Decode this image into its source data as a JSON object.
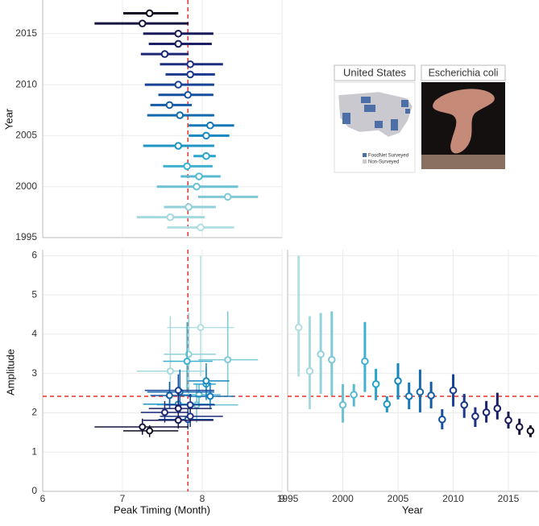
{
  "chart_data": [
    {
      "type": "forest",
      "ylabel": "Year",
      "y": [
        1996,
        1997,
        1998,
        1999,
        2000,
        2001,
        2002,
        2003,
        2004,
        2005,
        2006,
        2007,
        2008,
        2009,
        2010,
        2011,
        2012,
        2013,
        2014,
        2015,
        2016,
        2017
      ],
      "values": [
        7.98,
        7.6,
        7.83,
        8.32,
        7.93,
        7.96,
        7.81,
        8.05,
        7.7,
        8.05,
        8.1,
        7.72,
        7.59,
        7.82,
        7.7,
        7.85,
        7.85,
        7.53,
        7.7,
        7.7,
        7.25,
        7.34
      ],
      "low": [
        7.56,
        7.18,
        7.52,
        7.95,
        7.43,
        7.73,
        7.51,
        7.89,
        7.26,
        7.83,
        7.83,
        7.31,
        7.35,
        7.45,
        7.28,
        7.54,
        7.47,
        7.23,
        7.33,
        7.26,
        6.65,
        7.01
      ],
      "high": [
        8.4,
        8.03,
        8.17,
        8.7,
        8.45,
        8.23,
        8.13,
        8.17,
        8.15,
        8.34,
        8.4,
        8.15,
        7.87,
        8.14,
        8.15,
        8.16,
        8.26,
        7.83,
        8.12,
        8.14,
        7.83,
        7.7
      ],
      "colors": [
        "#b3dfe3",
        "#a6d9df",
        "#92d0da",
        "#7fc8d6",
        "#6cc1d4",
        "#58b9d2",
        "#3fb0d0",
        "#29a5cc",
        "#1d96c6",
        "#1787bf",
        "#1478b7",
        "#146aae",
        "#155ca6",
        "#164f9e",
        "#184396",
        "#1a388c",
        "#1c2f80",
        "#1c2773",
        "#1b2066",
        "#191a58",
        "#15153f",
        "#0d0d1f"
      ],
      "ylim": [
        1995,
        2018.3
      ],
      "yticks": [
        1995,
        2000,
        2005,
        2010,
        2015
      ]
    },
    {
      "type": "cross",
      "xlabel": "Peak Timing (Month)",
      "ylabel": "Amplitude",
      "xlim": [
        6,
        9
      ],
      "xticks": [
        6,
        7,
        8,
        9
      ],
      "ylim": [
        0,
        6.15
      ],
      "yticks": [
        0,
        1,
        2,
        3,
        4,
        5,
        6
      ],
      "vline": 7.82,
      "hline": 2.42,
      "reference_color": "#e8322b"
    },
    {
      "type": "errorbar",
      "xlabel": "Year",
      "values": [
        4.17,
        3.06,
        3.49,
        3.35,
        2.2,
        2.46,
        3.31,
        2.73,
        2.22,
        2.81,
        2.42,
        2.53,
        2.44,
        1.83,
        2.57,
        2.2,
        1.91,
        2.01,
        2.11,
        1.81,
        1.64,
        1.54
      ],
      "low": [
        2.92,
        2.09,
        2.48,
        2.44,
        1.75,
        2.16,
        2.53,
        2.32,
        2.01,
        2.34,
        2.09,
        2.01,
        2.11,
        1.58,
        2.16,
        1.87,
        1.64,
        1.75,
        1.83,
        1.6,
        1.44,
        1.38
      ],
      "high": [
        6.0,
        4.46,
        4.54,
        4.58,
        2.73,
        2.73,
        4.31,
        3.12,
        2.42,
        3.26,
        2.77,
        3.1,
        2.79,
        2.09,
        2.98,
        2.48,
        2.14,
        2.3,
        2.51,
        2.03,
        1.85,
        1.68
      ],
      "xlim": [
        1995,
        2017.7
      ],
      "xticks": [
        1995,
        2000,
        2005,
        2010,
        2015
      ]
    }
  ],
  "inset": {
    "map_title": "United States",
    "photo_title": "Escherichia coli",
    "legend": [
      "FoodNet Surveyed",
      "Non-Surveyed"
    ]
  }
}
